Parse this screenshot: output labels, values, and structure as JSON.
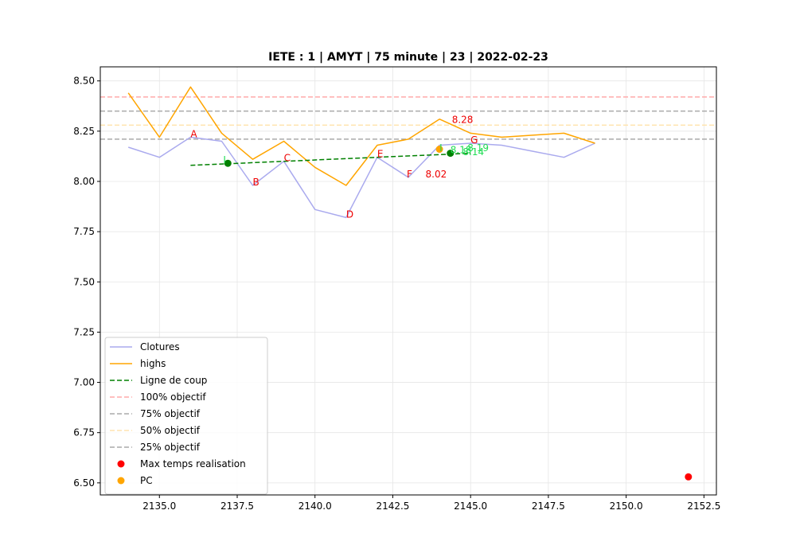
{
  "chart_data": {
    "type": "line",
    "title": "IETE : 1 | AMYT | 75 minute | 23 | 2022-02-23",
    "xlabel": "",
    "ylabel": "",
    "xlim": [
      2133.1,
      2152.9
    ],
    "ylim": [
      6.44,
      8.57
    ],
    "grid": true,
    "legend_position": "lower-left",
    "x_ticks": [
      {
        "value": 2135.0,
        "label": "2135.0"
      },
      {
        "value": 2137.5,
        "label": "2137.5"
      },
      {
        "value": 2140.0,
        "label": "2140.0"
      },
      {
        "value": 2142.5,
        "label": "2142.5"
      },
      {
        "value": 2145.0,
        "label": "2145.0"
      },
      {
        "value": 2147.5,
        "label": "2147.5"
      },
      {
        "value": 2150.0,
        "label": "2150.0"
      },
      {
        "value": 2152.5,
        "label": "2152.5"
      }
    ],
    "y_ticks": [
      {
        "value": 6.5,
        "label": "6.50"
      },
      {
        "value": 6.75,
        "label": "6.75"
      },
      {
        "value": 7.0,
        "label": "7.00"
      },
      {
        "value": 7.25,
        "label": "7.25"
      },
      {
        "value": 7.5,
        "label": "7.50"
      },
      {
        "value": 7.75,
        "label": "7.75"
      },
      {
        "value": 8.0,
        "label": "8.00"
      },
      {
        "value": 8.25,
        "label": "8.25"
      },
      {
        "value": 8.5,
        "label": "8.50"
      }
    ],
    "series": [
      {
        "name": "Clotures",
        "color": "#aaaaee",
        "style": "solid",
        "x": [
          2134,
          2135,
          2136,
          2137,
          2138,
          2139,
          2140,
          2141,
          2142,
          2143,
          2144,
          2145,
          2146,
          2147,
          2148,
          2149
        ],
        "y": [
          8.17,
          8.12,
          8.22,
          8.2,
          7.98,
          8.1,
          7.86,
          7.82,
          8.12,
          8.02,
          8.18,
          8.19,
          8.18,
          8.15,
          8.12,
          8.19
        ]
      },
      {
        "name": "highs",
        "color": "#ffa500",
        "style": "solid",
        "x": [
          2134,
          2135,
          2136,
          2137,
          2138,
          2139,
          2140,
          2141,
          2142,
          2143,
          2144,
          2145,
          2146,
          2147,
          2148,
          2149
        ],
        "y": [
          8.44,
          8.22,
          8.47,
          8.24,
          8.11,
          8.2,
          8.07,
          7.98,
          8.18,
          8.21,
          8.31,
          8.24,
          8.22,
          8.23,
          8.24,
          8.19
        ]
      },
      {
        "name": "Ligne de coup",
        "color": "#008000",
        "style": "dashed",
        "x": [
          2136,
          2145
        ],
        "y": [
          8.08,
          8.14
        ]
      }
    ],
    "hlines": [
      {
        "name": "100% objectif",
        "y": 8.42,
        "color": "#ffaaaa"
      },
      {
        "name": "75% objectif",
        "y": 8.35,
        "color": "#aaaaaa"
      },
      {
        "name": "50% objectif",
        "y": 8.28,
        "color": "#ffe4b0"
      },
      {
        "name": "25% objectif",
        "y": 8.21,
        "color": "#aaaaaa"
      }
    ],
    "points": [
      {
        "name": "Max temps realisation",
        "x": 2152,
        "y": 6.53,
        "color": "#ff0000"
      },
      {
        "name": "PC",
        "x": 2144,
        "y": 8.16,
        "color": "#ffa500"
      }
    ],
    "markers": [
      {
        "x": 2137.2,
        "y": 8.09,
        "color": "#008000"
      },
      {
        "x": 2144.35,
        "y": 8.14,
        "color": "#008000"
      }
    ],
    "annotations": [
      {
        "text": "A",
        "x": 2136.0,
        "y": 8.22,
        "color": "#ee0000"
      },
      {
        "text": "B",
        "x": 2138.0,
        "y": 7.98,
        "color": "#ee0000"
      },
      {
        "text": "C",
        "x": 2139.0,
        "y": 8.1,
        "color": "#ee0000"
      },
      {
        "text": "D",
        "x": 2141.0,
        "y": 7.82,
        "color": "#ee0000"
      },
      {
        "text": "E",
        "x": 2142.0,
        "y": 8.12,
        "color": "#ee0000"
      },
      {
        "text": "F",
        "x": 2142.95,
        "y": 8.02,
        "color": "#ee0000"
      },
      {
        "text": "G",
        "x": 2145.0,
        "y": 8.19,
        "color": "#ee0000"
      },
      {
        "text": "8.28",
        "x": 2144.4,
        "y": 8.29,
        "color": "#ee0000"
      },
      {
        "text": "8.02",
        "x": 2143.55,
        "y": 8.02,
        "color": "#ee0000"
      },
      {
        "text": "I",
        "x": 2137.05,
        "y": 8.09,
        "color": "#22dd55"
      },
      {
        "text": "I",
        "x": 2144.0,
        "y": 8.15,
        "color": "#22dd55"
      },
      {
        "text": "8.19",
        "x": 2144.9,
        "y": 8.15,
        "color": "#22dd55"
      },
      {
        "text": "8.18",
        "x": 2144.35,
        "y": 8.14,
        "color": "#22dd55"
      },
      {
        "text": "8.14",
        "x": 2144.75,
        "y": 8.13,
        "color": "#22dd55"
      }
    ],
    "legend": [
      {
        "label": "Clotures",
        "kind": "line",
        "color": "#aaaaee",
        "dash": ""
      },
      {
        "label": "highs",
        "kind": "line",
        "color": "#ffa500",
        "dash": ""
      },
      {
        "label": "Ligne de coup",
        "kind": "line",
        "color": "#008000",
        "dash": "6,3"
      },
      {
        "label": "100% objectif",
        "kind": "line",
        "color": "#ffaaaa",
        "dash": "6,3"
      },
      {
        "label": "75% objectif",
        "kind": "line",
        "color": "#aaaaaa",
        "dash": "6,3"
      },
      {
        "label": "50% objectif",
        "kind": "line",
        "color": "#ffe4b0",
        "dash": "6,3"
      },
      {
        "label": "25% objectif",
        "kind": "line",
        "color": "#aaaaaa",
        "dash": "6,3"
      },
      {
        "label": "Max temps realisation",
        "kind": "dot",
        "color": "#ff0000",
        "dash": ""
      },
      {
        "label": "PC",
        "kind": "dot",
        "color": "#ffa500",
        "dash": ""
      }
    ]
  }
}
